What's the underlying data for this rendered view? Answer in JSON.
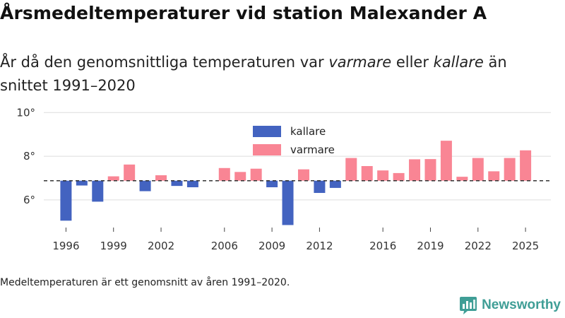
{
  "title": "Årsmedeltemperaturer vid station Malexander A",
  "subtitle": {
    "part1": "År då den genomsnittliga temperaturen var ",
    "warm": "varmare",
    "part2": " eller ",
    "cold": "kallare",
    "part3": " än snittet 1991–2020"
  },
  "footnote": "Medeltemperaturen är ett genomsnitt av åren 1991–2020.",
  "brand": {
    "name": "Newsworthy",
    "icon": "bar-chart-logo-icon"
  },
  "colors": {
    "warm": "#f98594",
    "cold": "#4363c0",
    "reference": "#333333",
    "grid": "#dddddd",
    "brand": "#3f9e96"
  },
  "chart_data": {
    "type": "bar",
    "baseline": 6.88,
    "ylim": [
      4.8,
      10.3
    ],
    "yticks": [
      6,
      8,
      10
    ],
    "ytick_labels": [
      "6°",
      "8°",
      "10°"
    ],
    "xlim": [
      1994.6,
      2026.6
    ],
    "xticks": [
      1996,
      1999,
      2002,
      2006,
      2009,
      2012,
      2016,
      2019,
      2022,
      2025
    ],
    "legend": [
      {
        "key": "cold",
        "label": "kallare"
      },
      {
        "key": "warm",
        "label": "varmare"
      }
    ],
    "x": [
      1996,
      1997,
      1998,
      1999,
      2000,
      2001,
      2002,
      2003,
      2004,
      2006,
      2007,
      2008,
      2009,
      2010,
      2011,
      2012,
      2013,
      2014,
      2015,
      2016,
      2017,
      2018,
      2019,
      2020,
      2021,
      2022,
      2023,
      2024,
      2025
    ],
    "values": [
      5.05,
      6.66,
      5.92,
      7.08,
      7.62,
      6.4,
      7.13,
      6.64,
      6.58,
      7.46,
      7.28,
      7.43,
      6.58,
      4.85,
      7.4,
      6.32,
      6.55,
      7.92,
      7.55,
      7.35,
      7.23,
      7.86,
      7.87,
      8.71,
      7.06,
      7.92,
      7.31,
      7.92,
      8.27
    ]
  }
}
